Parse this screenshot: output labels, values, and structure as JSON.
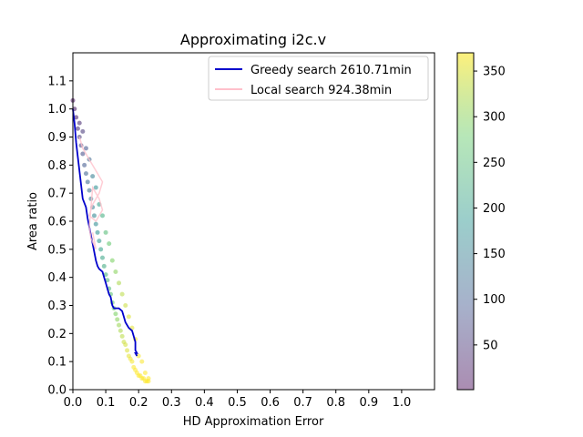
{
  "chart_data": {
    "type": "scatter",
    "title": "Approximating i2c.v",
    "xlabel": "HD Approximation Error",
    "ylabel": "Area ratio",
    "xlim": [
      0.0,
      1.1
    ],
    "ylim": [
      0.0,
      1.2
    ],
    "xticks": [
      "0.0",
      "0.1",
      "0.2",
      "0.3",
      "0.4",
      "0.5",
      "0.6",
      "0.7",
      "0.8",
      "0.9",
      "1.0"
    ],
    "yticks": [
      "0.0",
      "0.1",
      "0.2",
      "0.3",
      "0.4",
      "0.5",
      "0.6",
      "0.7",
      "0.8",
      "0.9",
      "1.0",
      "1.1"
    ],
    "grid": false,
    "legend_position": "top-right",
    "colors": {
      "greedy": "#0000cc",
      "local": "#ffc0cb",
      "colormap": [
        "#440154",
        "#3b528b",
        "#21918c",
        "#5ec962",
        "#fde725"
      ]
    },
    "series": [
      {
        "name": "Greedy search 2610.71min",
        "kind": "line",
        "color": "#0000cc",
        "x": [
          0.0,
          0.005,
          0.01,
          0.015,
          0.02,
          0.025,
          0.03,
          0.04,
          0.045,
          0.05,
          0.055,
          0.06,
          0.065,
          0.07,
          0.075,
          0.08,
          0.09,
          0.095,
          0.1,
          0.105,
          0.11,
          0.115,
          0.12,
          0.125,
          0.13,
          0.14,
          0.15,
          0.155,
          0.16,
          0.17,
          0.18,
          0.185,
          0.19,
          0.19,
          0.195,
          0.19,
          0.195
        ],
        "y": [
          1.0,
          0.95,
          0.88,
          0.83,
          0.78,
          0.73,
          0.68,
          0.65,
          0.61,
          0.58,
          0.55,
          0.52,
          0.49,
          0.46,
          0.44,
          0.43,
          0.42,
          0.4,
          0.38,
          0.36,
          0.34,
          0.33,
          0.3,
          0.29,
          0.29,
          0.29,
          0.28,
          0.26,
          0.24,
          0.22,
          0.21,
          0.19,
          0.17,
          0.14,
          0.13,
          0.13,
          0.12
        ]
      },
      {
        "name": "Local search 924.38min",
        "kind": "line",
        "color": "#ffc0cb",
        "x": [
          0.02,
          0.03,
          0.05,
          0.07,
          0.09,
          0.08,
          0.06,
          0.05,
          0.07,
          0.09,
          0.08,
          0.06,
          0.05,
          0.055,
          0.07,
          0.06
        ],
        "y": [
          0.9,
          0.86,
          0.82,
          0.78,
          0.74,
          0.7,
          0.66,
          0.62,
          0.6,
          0.64,
          0.68,
          0.72,
          0.58,
          0.54,
          0.5,
          0.56
        ]
      },
      {
        "name": "Iterations",
        "kind": "scatter",
        "color_by": "iteration",
        "x": [
          0.0,
          0.005,
          0.01,
          0.015,
          0.02,
          0.025,
          0.03,
          0.035,
          0.04,
          0.045,
          0.05,
          0.055,
          0.06,
          0.065,
          0.07,
          0.075,
          0.08,
          0.085,
          0.09,
          0.095,
          0.1,
          0.105,
          0.11,
          0.115,
          0.12,
          0.125,
          0.13,
          0.135,
          0.14,
          0.145,
          0.15,
          0.155,
          0.16,
          0.165,
          0.17,
          0.175,
          0.18,
          0.185,
          0.19,
          0.195,
          0.2,
          0.205,
          0.21,
          0.215,
          0.22,
          0.225,
          0.23,
          0.02,
          0.04,
          0.06,
          0.08,
          0.1,
          0.12,
          0.14,
          0.16,
          0.18,
          0.2,
          0.22,
          0.03,
          0.05,
          0.07,
          0.09,
          0.11,
          0.13,
          0.15,
          0.17,
          0.19,
          0.21,
          0.23
        ],
        "y": [
          1.03,
          1.0,
          0.97,
          0.93,
          0.9,
          0.87,
          0.84,
          0.8,
          0.77,
          0.74,
          0.71,
          0.68,
          0.65,
          0.62,
          0.59,
          0.56,
          0.53,
          0.5,
          0.47,
          0.44,
          0.41,
          0.39,
          0.36,
          0.34,
          0.31,
          0.29,
          0.27,
          0.25,
          0.23,
          0.21,
          0.19,
          0.17,
          0.16,
          0.14,
          0.12,
          0.11,
          0.1,
          0.08,
          0.07,
          0.06,
          0.05,
          0.05,
          0.04,
          0.04,
          0.03,
          0.03,
          0.03,
          0.95,
          0.86,
          0.76,
          0.66,
          0.56,
          0.46,
          0.38,
          0.3,
          0.22,
          0.12,
          0.06,
          0.92,
          0.82,
          0.72,
          0.62,
          0.52,
          0.42,
          0.34,
          0.26,
          0.18,
          0.1,
          0.04
        ],
        "c": [
          10,
          20,
          30,
          45,
          60,
          70,
          80,
          95,
          110,
          120,
          130,
          140,
          150,
          160,
          170,
          180,
          190,
          200,
          210,
          220,
          230,
          240,
          250,
          260,
          270,
          280,
          290,
          300,
          310,
          320,
          330,
          340,
          345,
          350,
          355,
          360,
          365,
          368,
          370,
          370,
          370,
          370,
          370,
          370,
          370,
          370,
          370,
          40,
          90,
          150,
          200,
          250,
          290,
          320,
          340,
          355,
          365,
          370,
          55,
          115,
          175,
          225,
          270,
          300,
          330,
          350,
          362,
          368,
          370
        ]
      }
    ],
    "colorbar": {
      "ticks": [
        "50",
        "100",
        "150",
        "200",
        "250",
        "300",
        "350"
      ],
      "range": [
        1,
        370
      ]
    }
  }
}
